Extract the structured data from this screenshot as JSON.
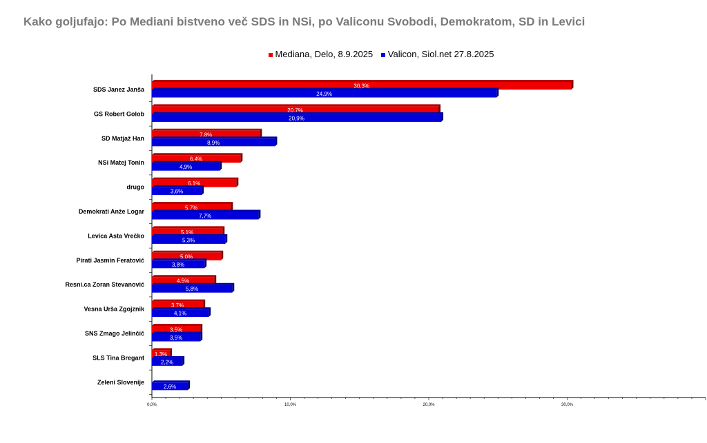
{
  "chart_data": {
    "type": "bar",
    "orientation": "horizontal",
    "title": "Kako goljufajo: Po Mediani bistveno več SDS in NSi, po Valiconu Svobodi, Demokratom, SD in Levici",
    "legend_position": "top",
    "categories": [
      "SDS Janez Janša",
      "GS Robert Golob",
      "SD Matjaž Han",
      "NSi Matej Tonin",
      "drugo",
      "Demokrati Anže Logar",
      "Levica  Asta Vrečko",
      "Pirati Jasmin Feratović",
      "Resni.ca Zoran Stevanović",
      "Vesna Urša Zgojznik",
      "SNS Zmago Jelinčič",
      "SLS Tina Bregant",
      "Zeleni Slovenije"
    ],
    "series": [
      {
        "name": "Mediana, Delo, 8.9.2025",
        "color": "#ee0000",
        "values": [
          30.3,
          20.7,
          7.8,
          6.4,
          6.1,
          5.7,
          5.1,
          5.0,
          4.5,
          3.7,
          3.5,
          1.3,
          null
        ],
        "labels": [
          "30,3%",
          "20,7%",
          "7,8%",
          "6,4%",
          "6,1%",
          "5,7%",
          "5,1%",
          "5,0%",
          "4,5%",
          "3,7%",
          "3,5%",
          "1,3%",
          ""
        ]
      },
      {
        "name": "Valicon, Siol.net 27.8.2025",
        "color": "#0000dd",
        "values": [
          24.9,
          20.9,
          8.9,
          4.9,
          3.6,
          7.7,
          5.3,
          3.8,
          5.8,
          4.1,
          3.5,
          2.2,
          2.6
        ],
        "labels": [
          "24,9%",
          "20,9%",
          "8,9%",
          "4,9%",
          "3,6%",
          "7,7%",
          "5,3%",
          "3,8%",
          "5,8%",
          "4,1%",
          "3,5%",
          "2,2%",
          "2,6%"
        ]
      }
    ],
    "xlim": [
      0,
      40
    ],
    "xticks": [
      0,
      10,
      20,
      30
    ],
    "xtick_labels": [
      "0,0%",
      "10,0%",
      "20,0%",
      "30,0%"
    ],
    "grid": false
  }
}
